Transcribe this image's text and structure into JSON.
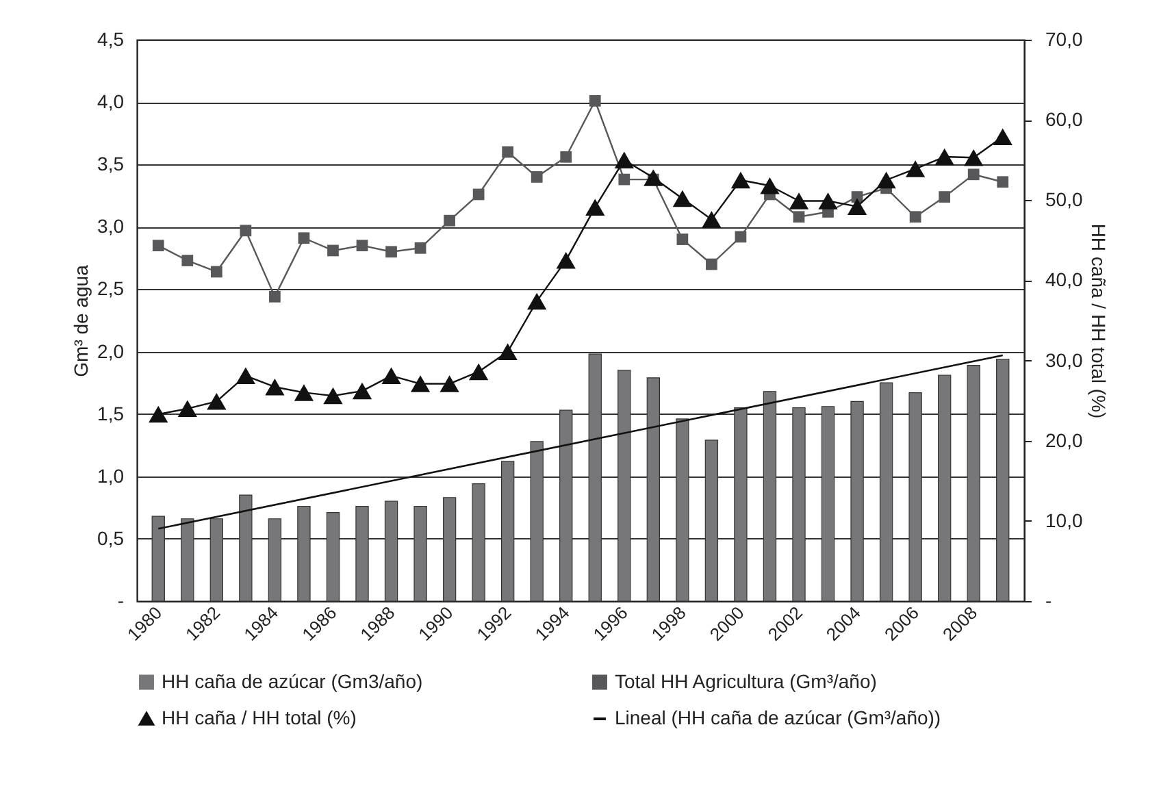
{
  "chart_data": {
    "type": "bar",
    "x": [
      1980,
      1981,
      1982,
      1983,
      1984,
      1985,
      1986,
      1987,
      1988,
      1989,
      1990,
      1991,
      1992,
      1993,
      1994,
      1995,
      1996,
      1997,
      1998,
      1999,
      2000,
      2001,
      2002,
      2003,
      2004,
      2005,
      2006,
      2007,
      2008,
      2009
    ],
    "xlim": [
      1979.5,
      2009.5
    ],
    "xticks": [
      1980,
      1982,
      1984,
      1986,
      1988,
      1990,
      1992,
      1994,
      1996,
      1998,
      2000,
      2002,
      2004,
      2006,
      2008
    ],
    "ylabel": "Gm³ de agua",
    "y2label": "HH caña / HH total (%)",
    "ylim": [
      0,
      4.5
    ],
    "yticks": [
      {
        "value": 0,
        "label": "-"
      },
      {
        "value": 0.5,
        "label": "0,5"
      },
      {
        "value": 1,
        "label": "1,0"
      },
      {
        "value": 1.5,
        "label": "1,5"
      },
      {
        "value": 2,
        "label": "2,0"
      },
      {
        "value": 2.5,
        "label": "2,5"
      },
      {
        "value": 3,
        "label": "3,0"
      },
      {
        "value": 3.5,
        "label": "3,5"
      },
      {
        "value": 4,
        "label": "4,0"
      },
      {
        "value": 4.5,
        "label": "4,5"
      }
    ],
    "y2lim": [
      0,
      70
    ],
    "y2ticks": [
      {
        "value": 0,
        "label": "-"
      },
      {
        "value": 10,
        "label": "10,0"
      },
      {
        "value": 20,
        "label": "20,0"
      },
      {
        "value": 30,
        "label": "30,0"
      },
      {
        "value": 40,
        "label": "40,0"
      },
      {
        "value": 50,
        "label": "50,0"
      },
      {
        "value": 60,
        "label": "60,0"
      },
      {
        "value": 70,
        "label": "70,0"
      }
    ],
    "grid": "y",
    "legend": "bottom",
    "series": [
      {
        "name": "HH caña de azúcar (Gm3/año)",
        "color": "#77777a",
        "values": [
          0.68,
          0.66,
          0.66,
          0.85,
          0.66,
          0.76,
          0.71,
          0.76,
          0.8,
          0.76,
          0.83,
          0.94,
          1.12,
          1.28,
          1.53,
          1.98,
          1.85,
          1.79,
          1.46,
          1.29,
          1.55,
          1.68,
          1.55,
          1.56,
          1.6,
          1.75,
          1.67,
          1.81,
          1.89,
          1.94
        ]
      },
      {
        "name": "Total HH Agricultura (Gm³/año)",
        "type": "line",
        "marker": "square",
        "color": "#58585a",
        "values": [
          2.85,
          2.73,
          2.64,
          2.97,
          2.44,
          2.91,
          2.81,
          2.85,
          2.8,
          2.83,
          3.05,
          3.26,
          3.6,
          3.4,
          3.56,
          4.01,
          3.38,
          3.38,
          2.9,
          2.7,
          2.92,
          3.26,
          3.08,
          3.12,
          3.24,
          3.31,
          3.08,
          3.24,
          3.42,
          3.36
        ]
      },
      {
        "name": "HH caña / HH total (%)",
        "type": "line",
        "marker": "triangle",
        "axis": "y2",
        "color": "#111111",
        "values": [
          23.3,
          24,
          24.9,
          28.1,
          26.7,
          26,
          25.6,
          26.2,
          28.1,
          27.1,
          27.1,
          28.6,
          31.1,
          37.4,
          42.5,
          49.1,
          55,
          52.8,
          50.2,
          47.6,
          52.5,
          51.8,
          49.9,
          49.9,
          49.2,
          52.5,
          53.9,
          55.4,
          55.3,
          57.9
        ]
      },
      {
        "name": "Lineal (HH caña de azúcar (Gm³/año))",
        "type": "line",
        "marker": "none",
        "color": "#111111",
        "x": [
          1980,
          2009
        ],
        "values": [
          0.58,
          1.97
        ]
      }
    ]
  }
}
